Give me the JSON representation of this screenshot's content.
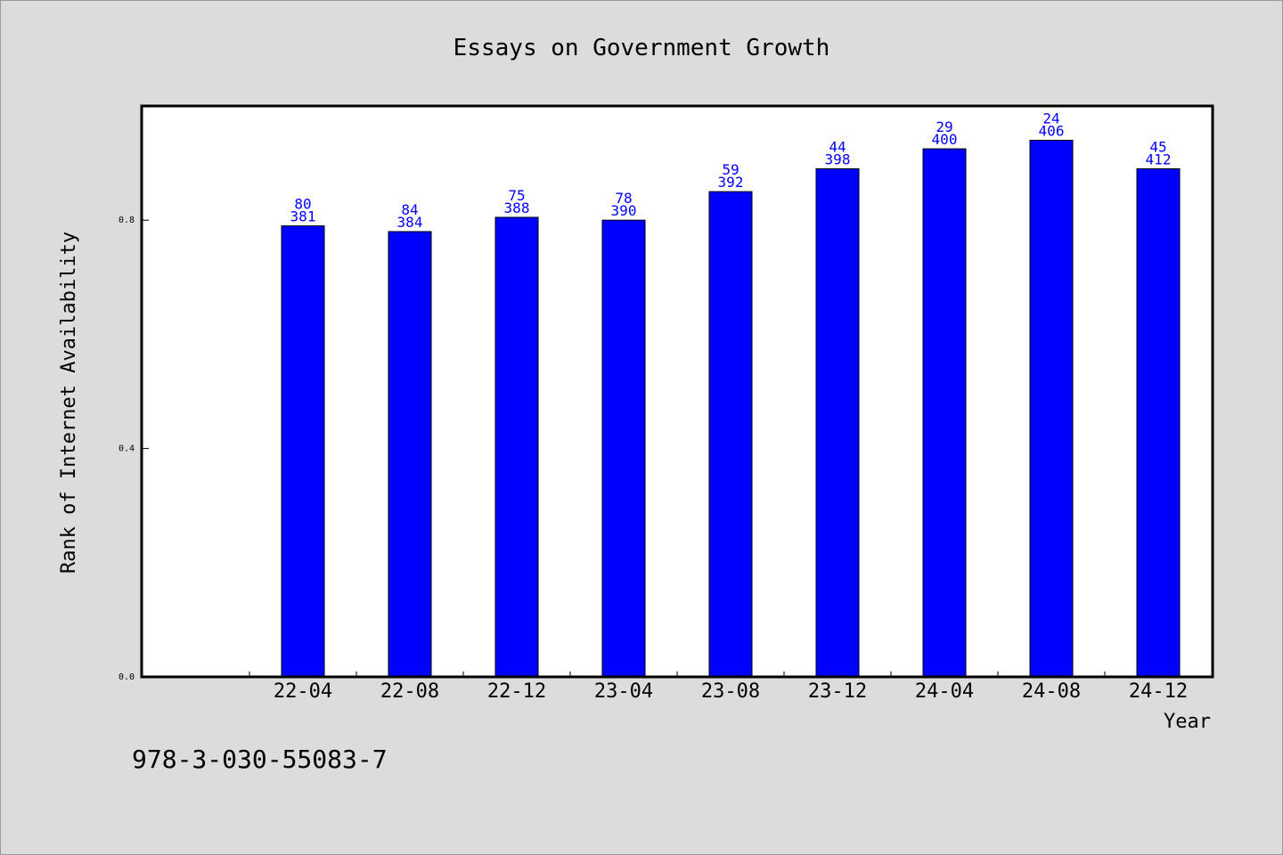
{
  "chart_data": {
    "type": "bar",
    "title": "Essays on Government Growth",
    "xlabel": "Year",
    "ylabel": "Rank of Internet Availability",
    "categories": [
      "22-04",
      "22-08",
      "22-12",
      "23-04",
      "23-08",
      "23-12",
      "24-04",
      "24-08",
      "24-12"
    ],
    "values": [
      0.79,
      0.78,
      0.805,
      0.8,
      0.85,
      0.89,
      0.925,
      0.94,
      0.89
    ],
    "data_labels_top": [
      "80",
      "84",
      "75",
      "78",
      "59",
      "44",
      "29",
      "24",
      "45"
    ],
    "data_labels_bottom": [
      "381",
      "384",
      "388",
      "390",
      "392",
      "398",
      "400",
      "406",
      "412"
    ],
    "yticks": [
      0.0,
      0.4,
      0.8
    ],
    "ytick_labels": [
      "0.0",
      "0.4",
      "0.8"
    ],
    "ylim": [
      0,
      1.0
    ],
    "grid": false,
    "bar_color": "#0000ff",
    "label_color": "#0000ff",
    "background": "#dcdcdc",
    "plot_background": "#ffffff"
  },
  "footer": {
    "isbn": "978-3-030-55083-7"
  }
}
